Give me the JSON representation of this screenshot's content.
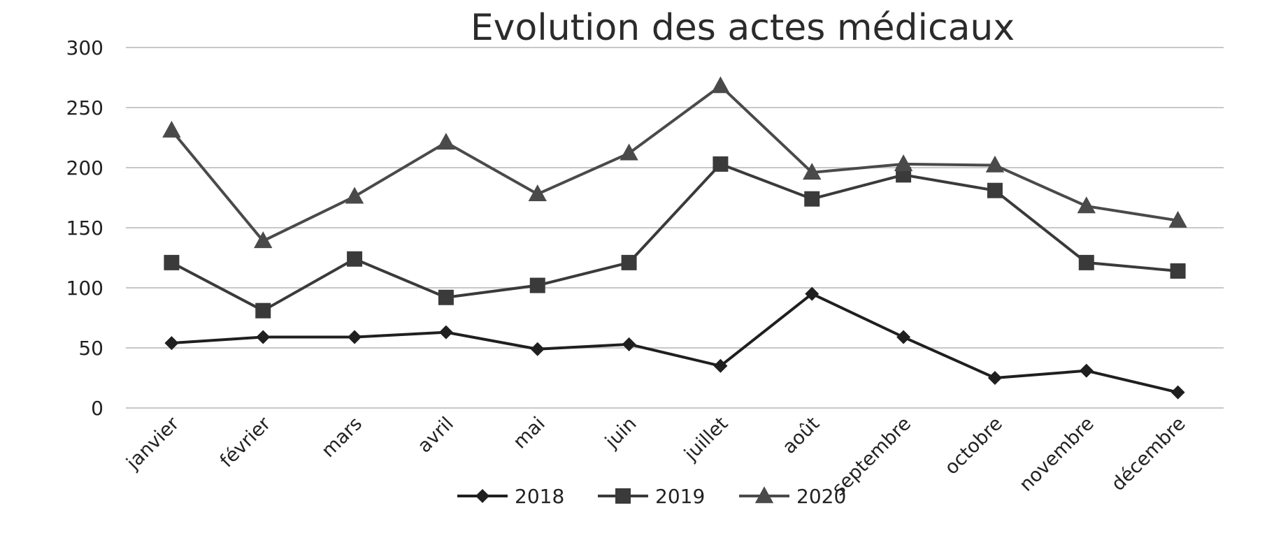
{
  "chart_data": {
    "type": "line",
    "title": "Evolution des actes médicaux",
    "xlabel": "",
    "ylabel": "",
    "ylim": [
      0,
      300
    ],
    "yticks": [
      0,
      50,
      100,
      150,
      200,
      250,
      300
    ],
    "grid": true,
    "legend_position": "bottom",
    "categories": [
      "janvier",
      "février",
      "mars",
      "avril",
      "mai",
      "juin",
      "juillet",
      "août",
      "septembre",
      "octobre",
      "novembre",
      "décembre"
    ],
    "series": [
      {
        "name": "2018",
        "marker": "diamond",
        "color": "#1f1f1f",
        "values": [
          54,
          59,
          59,
          63,
          49,
          53,
          35,
          95,
          59,
          25,
          31,
          13
        ]
      },
      {
        "name": "2019",
        "marker": "square",
        "color": "#3a3a3a",
        "values": [
          121,
          81,
          124,
          92,
          102,
          121,
          203,
          174,
          194,
          181,
          121,
          114
        ]
      },
      {
        "name": "2020",
        "marker": "triangle",
        "color": "#4a4a4a",
        "values": [
          231,
          139,
          176,
          221,
          178,
          212,
          268,
          196,
          203,
          202,
          168,
          156
        ]
      }
    ]
  }
}
